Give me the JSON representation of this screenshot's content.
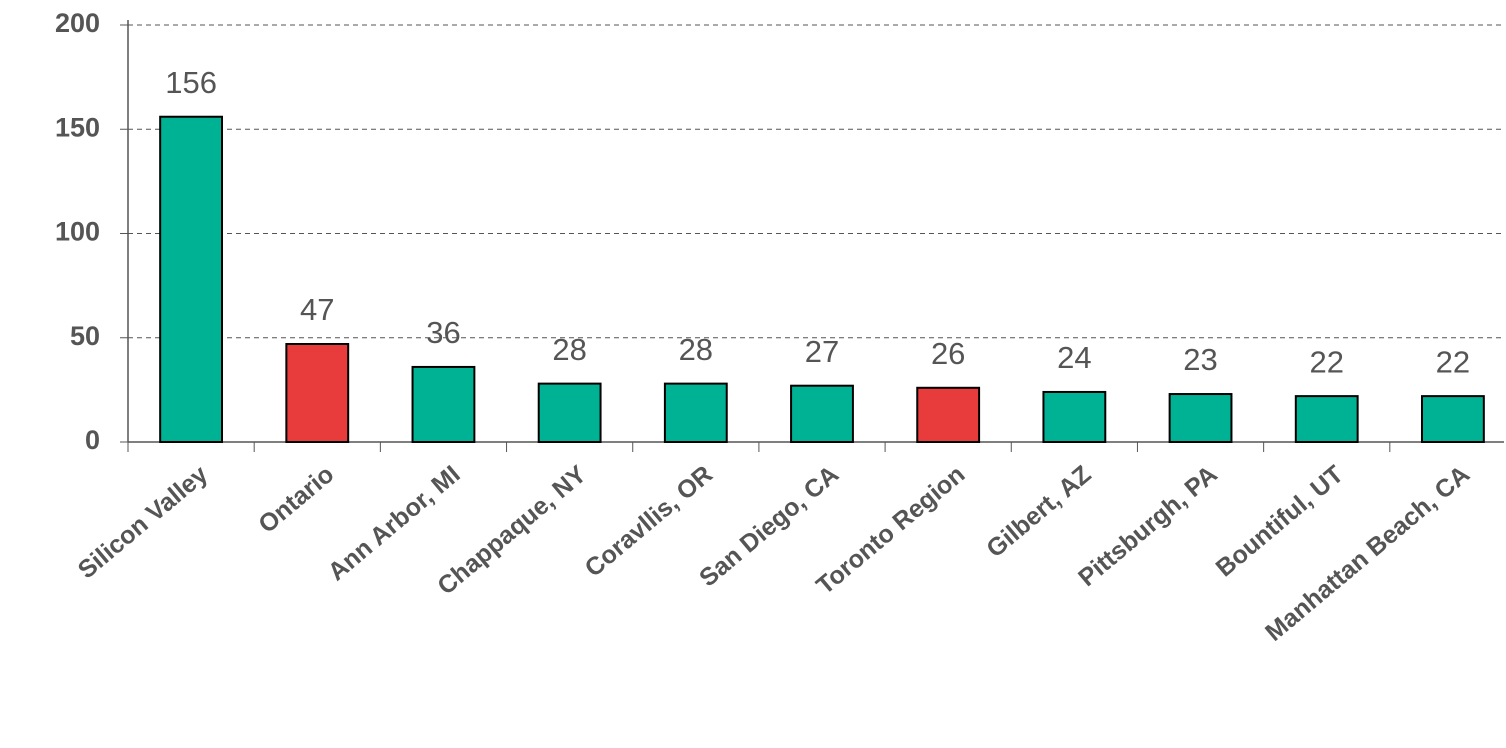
{
  "chart_data": {
    "type": "bar",
    "categories": [
      "Silicon Valley",
      "Ontario",
      "Ann Arbor, MI",
      "Chappaque, NY",
      "Coravllis, OR",
      "San Diego, CA",
      "Toronto Region",
      "Gilbert, AZ",
      "Pittsburgh, PA",
      "Bountiful, UT",
      "Manhattan Beach, CA"
    ],
    "values": [
      156,
      47,
      36,
      28,
      28,
      27,
      26,
      24,
      23,
      22,
      22
    ],
    "colors": [
      "#00b294",
      "#e83c3c",
      "#00b294",
      "#00b294",
      "#00b294",
      "#00b294",
      "#e83c3c",
      "#00b294",
      "#00b294",
      "#00b294",
      "#00b294"
    ],
    "ylim": [
      0,
      200
    ],
    "yticks": [
      0,
      50,
      100,
      150,
      200
    ],
    "grid": true
  }
}
